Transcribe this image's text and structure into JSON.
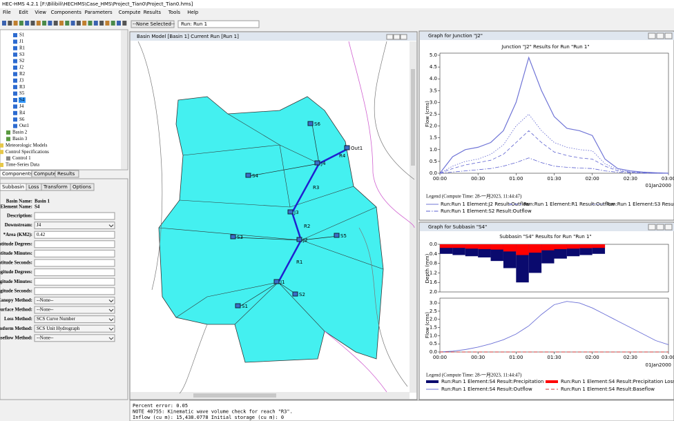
{
  "window": {
    "title": "HEC-HMS 4.2.1 [F:\\Bilibili\\HECHMS\\Case_HMS\\Project_Tian0\\Project_Tian0.hms]"
  },
  "menu": [
    "File",
    "Edit",
    "View",
    "Components",
    "Parameters",
    "Compute",
    "Results",
    "Tools",
    "Help"
  ],
  "toolbar": {
    "selector": "--None Selected--",
    "run": "Run: Run 1"
  },
  "tree": {
    "elements": [
      "S1",
      "J1",
      "R1",
      "S3",
      "S2",
      "J2",
      "R2",
      "J3",
      "R3",
      "S5",
      "S4",
      "J4",
      "R4",
      "S6",
      "Out1"
    ],
    "selected": "S4",
    "basins": [
      "Basin 2",
      "Basin 3"
    ],
    "folders": [
      "Meteorologic Models",
      "Control Specifications",
      "Time-Series Data"
    ],
    "controls": [
      "Control 1"
    ]
  },
  "tree_tabs": [
    "Components",
    "Compute",
    "Results"
  ],
  "properties": {
    "tabs": [
      "Subbasin",
      "Loss",
      "Transform",
      "Options"
    ],
    "basin_label": "Basin Name:",
    "basin": "Basin 1",
    "element_label": "Element Name:",
    "element": "S4",
    "fields": [
      {
        "label": "Description:"
      },
      {
        "label": "Downstream:",
        "value": "J4",
        "combo": true
      },
      {
        "label": "*Area (KM2):",
        "value": "0.42"
      },
      {
        "label": "Latitude Degrees:"
      },
      {
        "label": "Latitude Minutes:"
      },
      {
        "label": "Latitude Seconds:"
      },
      {
        "label": "Longitude Degrees:"
      },
      {
        "label": "Longitude Minutes:"
      },
      {
        "label": "Longitude Seconds:"
      },
      {
        "label": "Canopy Method:",
        "value": "--None--",
        "combo": true
      },
      {
        "label": "Surface Method:",
        "value": "--None--",
        "combo": true
      },
      {
        "label": "Loss Method:",
        "value": "SCS Curve Number",
        "combo": true
      },
      {
        "label": "Transform Method:",
        "value": "SCS Unit Hydrograph",
        "combo": true
      },
      {
        "label": "Baseflow Method:",
        "value": "--None--",
        "combo": true
      }
    ]
  },
  "basin_window": {
    "title": "Basin Model [Basin 1] Current Run [Run 1]",
    "nodes": [
      {
        "label": "S6"
      },
      {
        "label": "Out1"
      },
      {
        "label": "R4"
      },
      {
        "label": "J4"
      },
      {
        "label": "S4"
      },
      {
        "label": "R3"
      },
      {
        "label": "J3"
      },
      {
        "label": "R2"
      },
      {
        "label": "S3"
      },
      {
        "label": "J2"
      },
      {
        "label": "S5"
      },
      {
        "label": "R1"
      },
      {
        "label": "J1"
      },
      {
        "label": "S2"
      },
      {
        "label": "S1"
      }
    ]
  },
  "messages": [
    "Percent error: 0.05",
    "NOTE 40755:  Kinematic wave volume check for reach \"R3\".",
    "Inflow (cu m): 15,438.0778  Initial storage (cu m): 0"
  ],
  "chart_data": [
    {
      "type": "line",
      "window_title": "Graph for Junction \"J2\"",
      "title": "Junction \"J2\" Results for Run \"Run 1\"",
      "ylabel": "Flow (cms)",
      "date_label": "01Jan2000",
      "legend_title": "Legend (Compute Time: 28-一月2023, 11:44:47)",
      "categories": [
        "00:00",
        null,
        null,
        "00:30",
        null,
        null,
        "01:00",
        null,
        null,
        "01:30",
        null,
        null,
        "02:00",
        null,
        null,
        "02:30",
        null,
        null,
        "03:00"
      ],
      "ylim": [
        0,
        5
      ],
      "yticks": [
        {
          "value": 0,
          "label": "0.0"
        },
        {
          "value": 0.5,
          "label": "0.5"
        },
        {
          "value": 1,
          "label": "1.0"
        },
        {
          "value": 1.5,
          "label": "1.5"
        },
        {
          "value": 2,
          "label": "2.0"
        },
        {
          "value": 2.5,
          "label": "2.5"
        },
        {
          "value": 3,
          "label": "3.0"
        },
        {
          "value": 3.5,
          "label": "3.5"
        },
        {
          "value": 4,
          "label": "4.0"
        },
        {
          "value": 4.5,
          "label": "4.5"
        },
        {
          "value": 5,
          "label": "5.0"
        }
      ],
      "series": [
        {
          "name": "Run:Run 1 Element:J2 Result:Outflow",
          "color": "#6f74d6",
          "style": "solid",
          "values": [
            0,
            0.7,
            1.0,
            1.1,
            1.3,
            1.8,
            3.0,
            4.9,
            3.5,
            2.4,
            1.9,
            1.8,
            1.6,
            0.6,
            0.2,
            0.1,
            0.05,
            0.02,
            0
          ]
        },
        {
          "name": "Run:Run 1 Element:R1 Result:Outflow",
          "color": "#5a5fcf",
          "style": "dashed",
          "values": [
            0,
            0.2,
            0.35,
            0.45,
            0.55,
            0.8,
            1.3,
            1.8,
            1.3,
            0.9,
            0.75,
            0.65,
            0.6,
            0.3,
            0.1,
            0.05,
            0.02,
            0,
            0
          ]
        },
        {
          "name": "Run:Run 1 Element:S3 Result:Outflow",
          "color": "#5a5fcf",
          "style": "dotted",
          "values": [
            0,
            0.3,
            0.5,
            0.6,
            0.8,
            1.2,
            2.0,
            2.5,
            1.8,
            1.3,
            1.1,
            1.0,
            0.95,
            0.4,
            0.15,
            0.05,
            0.02,
            0,
            0
          ]
        },
        {
          "name": "Run:Run 1 Element:S2 Result:Outflow",
          "color": "#5a5fcf",
          "style": "dashdot",
          "values": [
            0,
            0.05,
            0.1,
            0.15,
            0.2,
            0.3,
            0.45,
            0.65,
            0.45,
            0.3,
            0.25,
            0.22,
            0.2,
            0.1,
            0.04,
            0.02,
            0,
            0,
            0
          ]
        }
      ]
    },
    {
      "type": "hydrograph",
      "window_title": "Graph for Subbasin \"S4\"",
      "title": "Subbasin \"S4\" Results for Run \"Run 1\"",
      "ylabel": "Flow (cms)",
      "y2label": "Depth (mm)",
      "date_label": "01Jan2000",
      "legend_title": "Legend (Compute Time: 28-一月2023, 11:44:47)",
      "categories": [
        "00:00",
        null,
        null,
        "00:30",
        null,
        null,
        "01:00",
        null,
        null,
        "01:30",
        null,
        null,
        "02:00",
        null,
        null,
        "02:30",
        null,
        null,
        "03:00"
      ],
      "ylim": [
        0,
        3.3
      ],
      "yticks": [
        {
          "value": 0,
          "label": "0.0"
        },
        {
          "value": 0.5,
          "label": "0.5"
        },
        {
          "value": 1,
          "label": "1.0"
        },
        {
          "value": 1.5,
          "label": "1.5"
        },
        {
          "value": 2,
          "label": "2.0"
        },
        {
          "value": 2.5,
          "label": "2.5"
        },
        {
          "value": 3,
          "label": "3.0"
        }
      ],
      "y2lim": [
        0,
        2
      ],
      "y2_inverted": true,
      "y2ticks": [
        {
          "value": 0,
          "label": "0.0"
        },
        {
          "value": 0.4,
          "label": "0.4"
        },
        {
          "value": 0.8,
          "label": "0.8"
        },
        {
          "value": 1.2,
          "label": "1.2"
        },
        {
          "value": 1.6,
          "label": "1.6"
        },
        {
          "value": 2,
          "label": "2.0"
        }
      ],
      "series": [
        {
          "name": "Run:Run 1 Element:S4 Result:Precipitation",
          "color": "#0a0a6e",
          "kind": "bar",
          "axis": "y2",
          "values": [
            0.4,
            0.45,
            0.5,
            0.55,
            0.7,
            1.0,
            1.6,
            1.2,
            0.8,
            0.6,
            0.5,
            0.45,
            0.4,
            null,
            null,
            null,
            null,
            null,
            null
          ]
        },
        {
          "name": "Run:Run 1 Element:S4 Result:Precipitation Loss",
          "color": "#ff0000",
          "kind": "bar",
          "axis": "y2",
          "values": [
            0.15,
            0.15,
            0.18,
            0.2,
            0.22,
            0.3,
            0.45,
            0.35,
            0.25,
            0.2,
            0.18,
            0.16,
            0.15,
            null,
            null,
            null,
            null,
            null,
            null
          ]
        },
        {
          "name": "Run:Run 1 Element:S4 Result:Outflow",
          "color": "#6a6fd6",
          "kind": "line",
          "style": "solid",
          "values": [
            0,
            0.05,
            0.15,
            0.3,
            0.5,
            0.75,
            1.1,
            1.6,
            2.3,
            2.9,
            3.1,
            3.0,
            2.7,
            2.3,
            1.9,
            1.5,
            1.1,
            0.7,
            0.45
          ]
        },
        {
          "name": "Run:Run 1 Element:S4 Result:Baseflow",
          "color": "#cc3333",
          "kind": "line",
          "style": "dashed",
          "values": [
            0,
            0,
            0,
            0,
            0,
            0,
            0,
            0,
            0,
            0,
            0,
            0,
            0,
            0,
            0,
            0,
            0,
            0,
            0
          ]
        }
      ]
    }
  ]
}
